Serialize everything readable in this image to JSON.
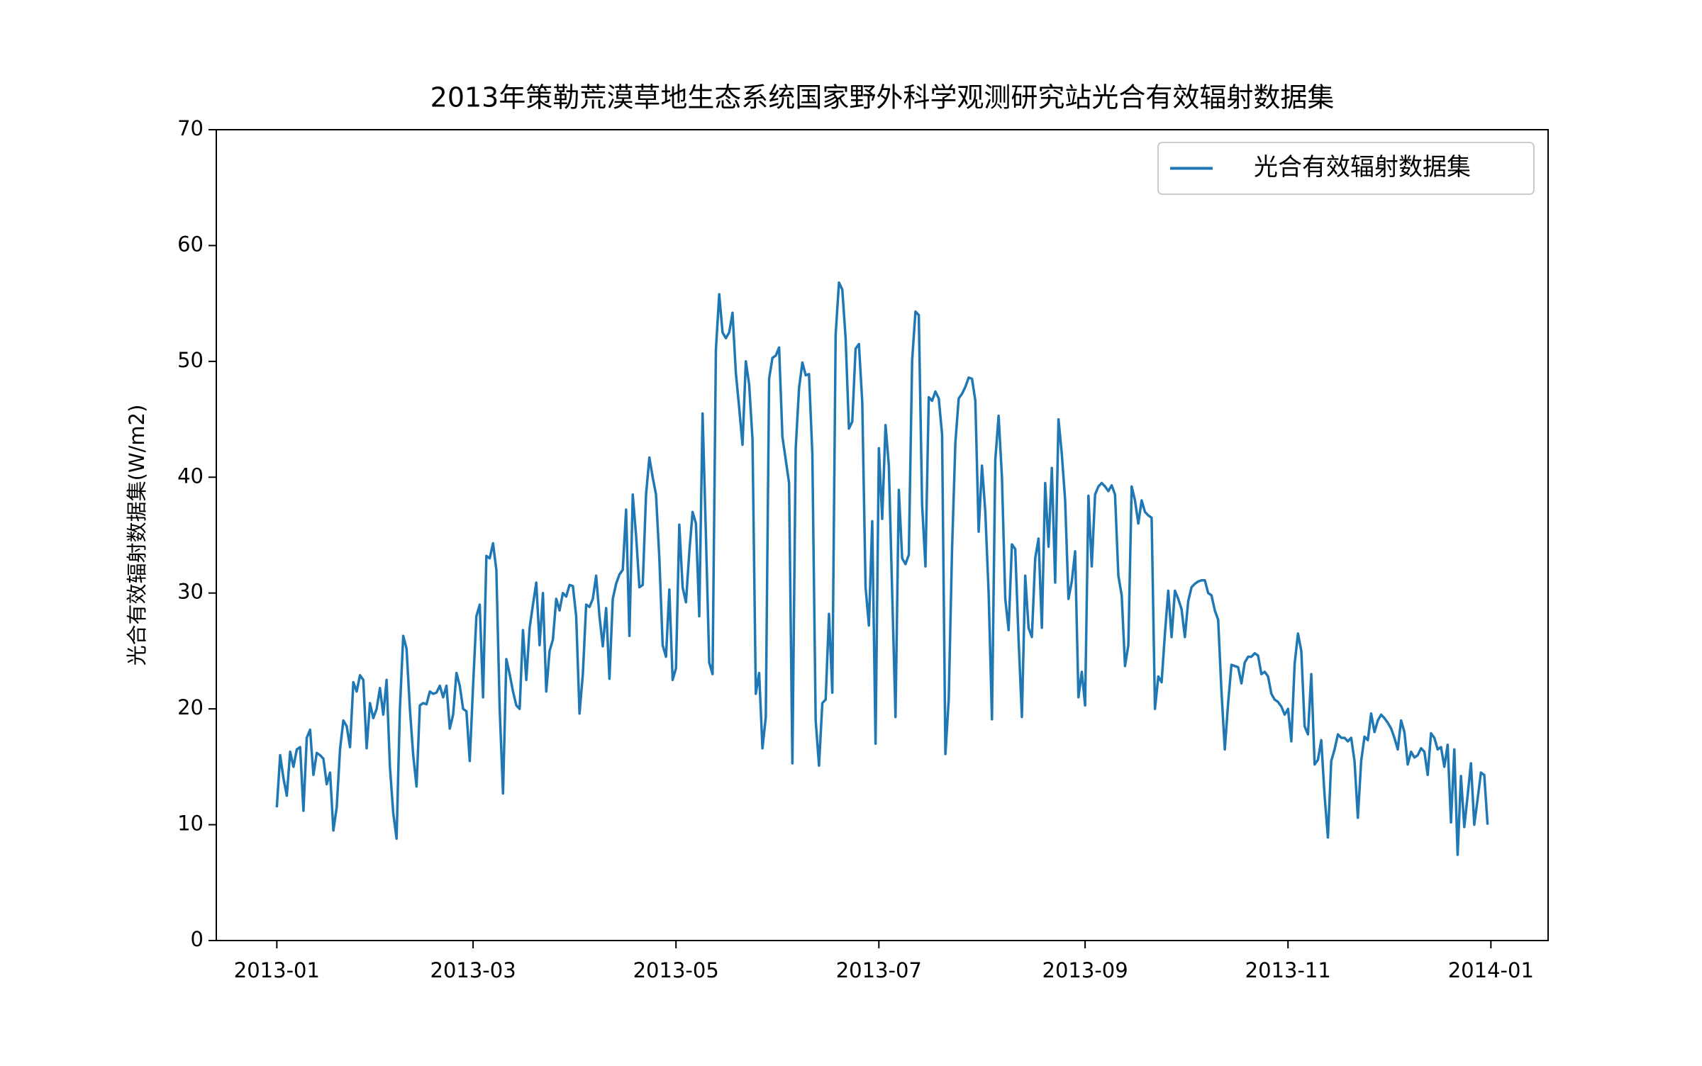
{
  "chart_data": {
    "type": "line",
    "title": "2013年策勒荒漠草地生态系统国家野外科学观测研究站光合有效辐射数据集",
    "y_label": "光合有效辐射数据集(W/m2)",
    "series": [
      {
        "name": "光合有效辐射数据集",
        "color": "#1f77b4",
        "values": [
          11.5,
          16,
          14,
          12.5,
          16.3,
          15,
          16.5,
          16.7,
          11.2,
          17.5,
          18.2,
          14.3,
          16.2,
          16,
          15.7,
          13.5,
          14.5,
          9.5,
          11.5,
          16.5,
          19,
          18.5,
          16.7,
          22.3,
          21.5,
          22.9,
          22.5,
          16.6,
          20.5,
          19.2,
          20,
          21.8,
          19.5,
          22.5,
          15,
          11,
          8.8,
          20,
          26.3,
          25.2,
          20,
          16,
          13.3,
          20.3,
          20.5,
          20.4,
          21.5,
          21.3,
          21.4,
          22,
          21,
          22,
          18.3,
          19.5,
          23.1,
          22,
          20,
          19.8,
          15.5,
          22,
          28,
          29,
          21,
          33.2,
          33,
          34.3,
          32,
          20,
          12.7,
          24.3,
          23,
          21.5,
          20.3,
          20,
          26.8,
          22.5,
          27,
          29,
          30.9,
          25.5,
          30,
          21.5,
          25,
          26,
          29.5,
          28.5,
          30,
          29.7,
          30.7,
          30.6,
          28,
          19.6,
          23,
          29,
          28.8,
          29.5,
          31.5,
          28,
          25.4,
          28.7,
          22.6,
          29.5,
          30.8,
          31.6,
          32,
          37.2,
          26.3,
          38.5,
          35,
          30.5,
          30.7,
          38.5,
          41.7,
          40,
          38.5,
          33,
          25.5,
          24.5,
          30.3,
          22.5,
          23.5,
          35.9,
          30.5,
          29.2,
          33.5,
          37,
          36,
          28,
          45.5,
          35,
          24,
          23,
          51,
          55.8,
          52.5,
          52,
          52.5,
          54.2,
          49,
          46,
          42.8,
          50,
          48,
          43.3,
          21.3,
          23.1,
          16.6,
          19.3,
          48.5,
          50.3,
          50.5,
          51.2,
          43.5,
          41.5,
          39.5,
          15.3,
          42.5,
          47.7,
          49.9,
          48.8,
          48.9,
          42,
          19,
          15.1,
          20.5,
          20.8,
          28.2,
          21.4,
          52.3,
          56.8,
          56.2,
          52,
          44.2,
          44.8,
          51.1,
          51.5,
          46.5,
          30.5,
          27.2,
          36.2,
          17,
          42.5,
          36.4,
          44.5,
          41,
          30,
          19.3,
          38.9,
          33,
          32.5,
          33.3,
          50.1,
          54.3,
          54,
          37.6,
          32.3,
          46.9,
          46.6,
          47.4,
          46.8,
          43.7,
          16.1,
          20.8,
          33.8,
          43,
          46.8,
          47.2,
          47.8,
          48.6,
          48.5,
          46.6,
          35.3,
          41,
          37,
          30,
          19.1,
          41.5,
          45.3,
          40,
          29.5,
          26.8,
          34.2,
          33.8,
          26,
          19.3,
          31.5,
          27,
          26.2,
          33,
          34.7,
          27,
          39.5,
          34,
          40.8,
          30.9,
          45,
          42,
          38,
          29.5,
          31,
          33.6,
          21,
          23.2,
          20.3,
          38.4,
          32.3,
          38.5,
          39.2,
          39.5,
          39.2,
          38.8,
          39.3,
          38.5,
          31.5,
          29.8,
          23.7,
          25.5,
          39.2,
          38,
          36,
          38,
          37,
          36.7,
          36.5,
          20,
          22.8,
          22.3,
          26.5,
          30.2,
          26.2,
          30.2,
          29.5,
          28.6,
          26.2,
          29.3,
          30.5,
          30.8,
          31,
          31.1,
          31.1,
          30,
          29.8,
          28.5,
          27.7,
          21.5,
          16.5,
          20.5,
          23.8,
          23.7,
          23.6,
          22.2,
          24,
          24.5,
          24.5,
          24.8,
          24.6,
          23,
          23.2,
          22.8,
          21.3,
          20.8,
          20.6,
          20.2,
          19.5,
          20,
          17.2,
          23.9,
          26.5,
          25,
          18.5,
          17.8,
          23,
          15.2,
          15.6,
          17.3,
          12.5,
          8.9,
          15.5,
          16.5,
          17.8,
          17.5,
          17.5,
          17.2,
          17.5,
          15.5,
          10.6,
          15.5,
          17.6,
          17.3,
          19.6,
          18,
          19,
          19.5,
          19.2,
          18.8,
          18.3,
          17.5,
          16.5,
          19,
          18,
          15.2,
          16.3,
          15.8,
          16,
          16.6,
          16.3,
          14.3,
          17.9,
          17.5,
          16.5,
          16.7,
          15,
          16.9,
          10.2,
          16.5,
          7.4,
          14.2,
          9.8,
          12.5,
          15.3,
          10,
          12.2,
          14.5,
          14.3,
          10
        ]
      }
    ],
    "xlim": [
      -18.2,
      382.2
    ],
    "xticks": [
      {
        "value": 0,
        "label": "2013-01"
      },
      {
        "value": 59,
        "label": "2013-03"
      },
      {
        "value": 120,
        "label": "2013-05"
      },
      {
        "value": 181,
        "label": "2013-07"
      },
      {
        "value": 243,
        "label": "2013-09"
      },
      {
        "value": 304,
        "label": "2013-11"
      },
      {
        "value": 365,
        "label": "2014-01"
      }
    ],
    "ylim": [
      0,
      70
    ],
    "yticks": [
      0,
      10,
      20,
      30,
      40,
      50,
      60,
      70
    ],
    "grid": false,
    "legend": "upper right"
  }
}
